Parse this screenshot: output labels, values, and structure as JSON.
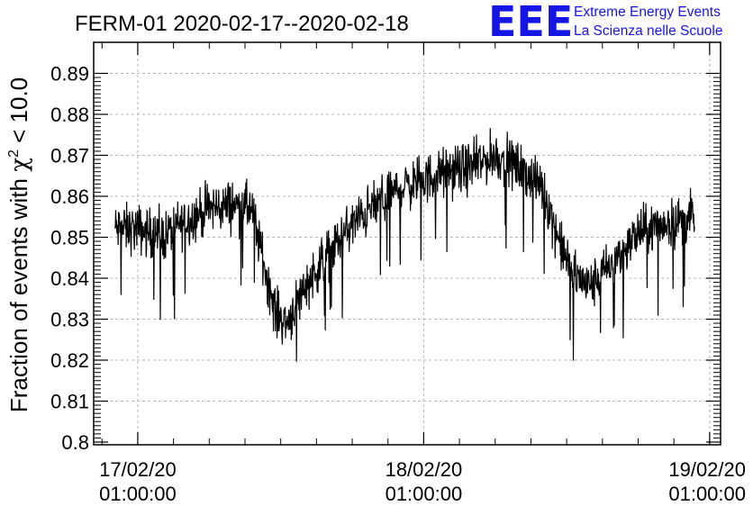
{
  "title": "FERM-01 2020-02-17--2020-02-18",
  "logo": {
    "mark": "EEE",
    "line1": "Extreme Energy Events",
    "line2": "La Scienza nelle Scuole",
    "color": "#1515e6"
  },
  "chart_data": {
    "type": "line",
    "ylabel_prefix": "Fraction of events with ",
    "ylabel_chi": "χ",
    "ylabel_sup": "2",
    "ylabel_suffix": " < 10.0",
    "ylim": [
      0.8,
      0.89
    ],
    "yticks": [
      "0.8",
      "0.81",
      "0.82",
      "0.83",
      "0.84",
      "0.85",
      "0.86",
      "0.87",
      "0.88",
      "0.89"
    ],
    "xlim": [
      "2020-02-16 21:18",
      "2020-02-19 01:55"
    ],
    "xticks": [
      {
        "date": "17/02/20",
        "time": "01:00:00"
      },
      {
        "date": "18/02/20",
        "time": "01:00:00"
      },
      {
        "date": "19/02/20",
        "time": "01:00:00"
      }
    ],
    "grid": true,
    "series": [
      {
        "color": "#000000",
        "x": [
          "2020-02-16 23:05",
          "2020-02-17 01:00",
          "2020-02-17 03:00",
          "2020-02-17 05:00",
          "2020-02-17 07:00",
          "2020-02-17 09:00",
          "2020-02-17 10:30",
          "2020-02-17 11:30",
          "2020-02-17 12:30",
          "2020-02-17 13:30",
          "2020-02-17 15:00",
          "2020-02-17 17:00",
          "2020-02-17 19:00",
          "2020-02-17 21:00",
          "2020-02-17 23:00",
          "2020-02-18 01:00",
          "2020-02-18 03:00",
          "2020-02-18 05:00",
          "2020-02-18 07:00",
          "2020-02-18 09:00",
          "2020-02-18 11:00",
          "2020-02-18 12:30",
          "2020-02-18 13:30",
          "2020-02-18 15:00",
          "2020-02-18 17:00",
          "2020-02-18 19:00",
          "2020-02-18 21:00",
          "2020-02-18 23:45"
        ],
        "y": [
          0.852,
          0.852,
          0.85,
          0.854,
          0.857,
          0.858,
          0.857,
          0.845,
          0.832,
          0.829,
          0.838,
          0.846,
          0.853,
          0.858,
          0.862,
          0.864,
          0.866,
          0.867,
          0.87,
          0.867,
          0.862,
          0.848,
          0.841,
          0.838,
          0.844,
          0.851,
          0.853,
          0.855
        ],
        "spread": 0.009
      }
    ]
  }
}
